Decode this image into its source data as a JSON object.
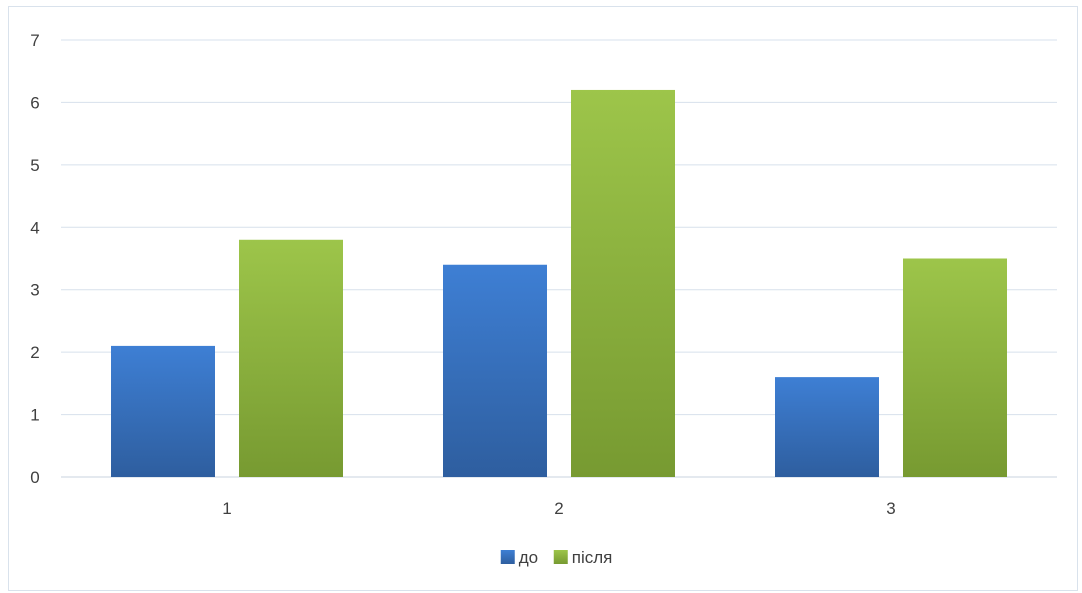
{
  "chart_data": {
    "type": "bar",
    "categories": [
      "1",
      "2",
      "3"
    ],
    "series": [
      {
        "name": "до",
        "values": [
          2.1,
          3.4,
          1.6
        ],
        "color": "#3a75c4"
      },
      {
        "name": "після",
        "values": [
          3.8,
          6.2,
          3.5
        ],
        "color": "#8db63c"
      }
    ],
    "ylim": [
      0,
      7
    ],
    "yticks": [
      "0",
      "1",
      "2",
      "3",
      "4",
      "5",
      "6",
      "7"
    ],
    "grid": true,
    "legend_position": "bottom"
  }
}
